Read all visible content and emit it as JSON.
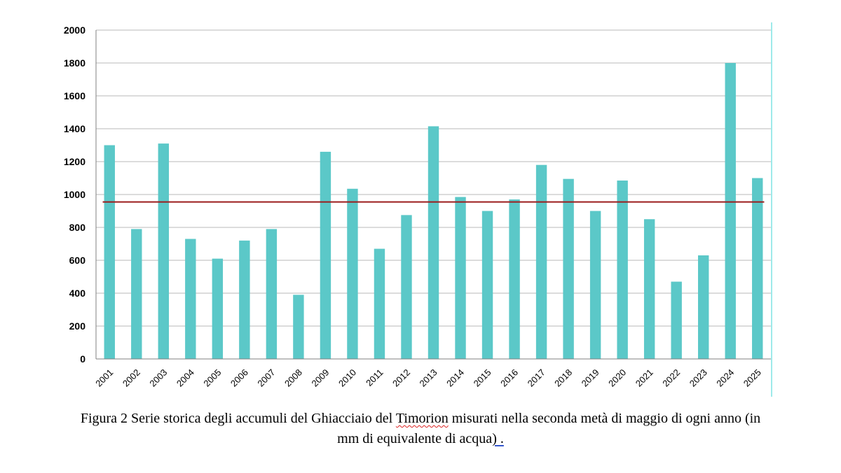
{
  "colors": {
    "bar": "#5bc8c8",
    "mean_line": "#9b1c1c",
    "grid": "#b8b8b8",
    "axis": "#808080",
    "right_border": "#7fe3e3"
  },
  "chart_data": {
    "type": "bar",
    "categories": [
      "2001",
      "2002",
      "2003",
      "2004",
      "2005",
      "2006",
      "2007",
      "2008",
      "2009",
      "2010",
      "2011",
      "2012",
      "2013",
      "2014",
      "2015",
      "2016",
      "2017",
      "2018",
      "2019",
      "2020",
      "2021",
      "2022",
      "2023",
      "2024",
      "2025"
    ],
    "values": [
      1300,
      790,
      1310,
      730,
      610,
      720,
      790,
      390,
      1260,
      1035,
      670,
      875,
      1415,
      985,
      900,
      970,
      1180,
      1095,
      900,
      1085,
      850,
      470,
      630,
      1800,
      1100
    ],
    "mean": 955,
    "ylim": [
      0,
      2000
    ],
    "yticks": [
      "0",
      "200",
      "400",
      "600",
      "800",
      "1000",
      "1200",
      "1400",
      "1600",
      "1800",
      "2000"
    ],
    "grid": true,
    "legend": false
  },
  "caption": {
    "line1_part1": "Figura 2 Serie storica degli accumuli del Ghiacciaio del ",
    "line1_squiggle": "Timorion",
    "line1_part2": " misurati nella seconda metà di maggio di ogni anno (in",
    "line2_part1": "mm di equivalente di acqua",
    "line2_underlined": ") .",
    "line2_part2": ""
  }
}
